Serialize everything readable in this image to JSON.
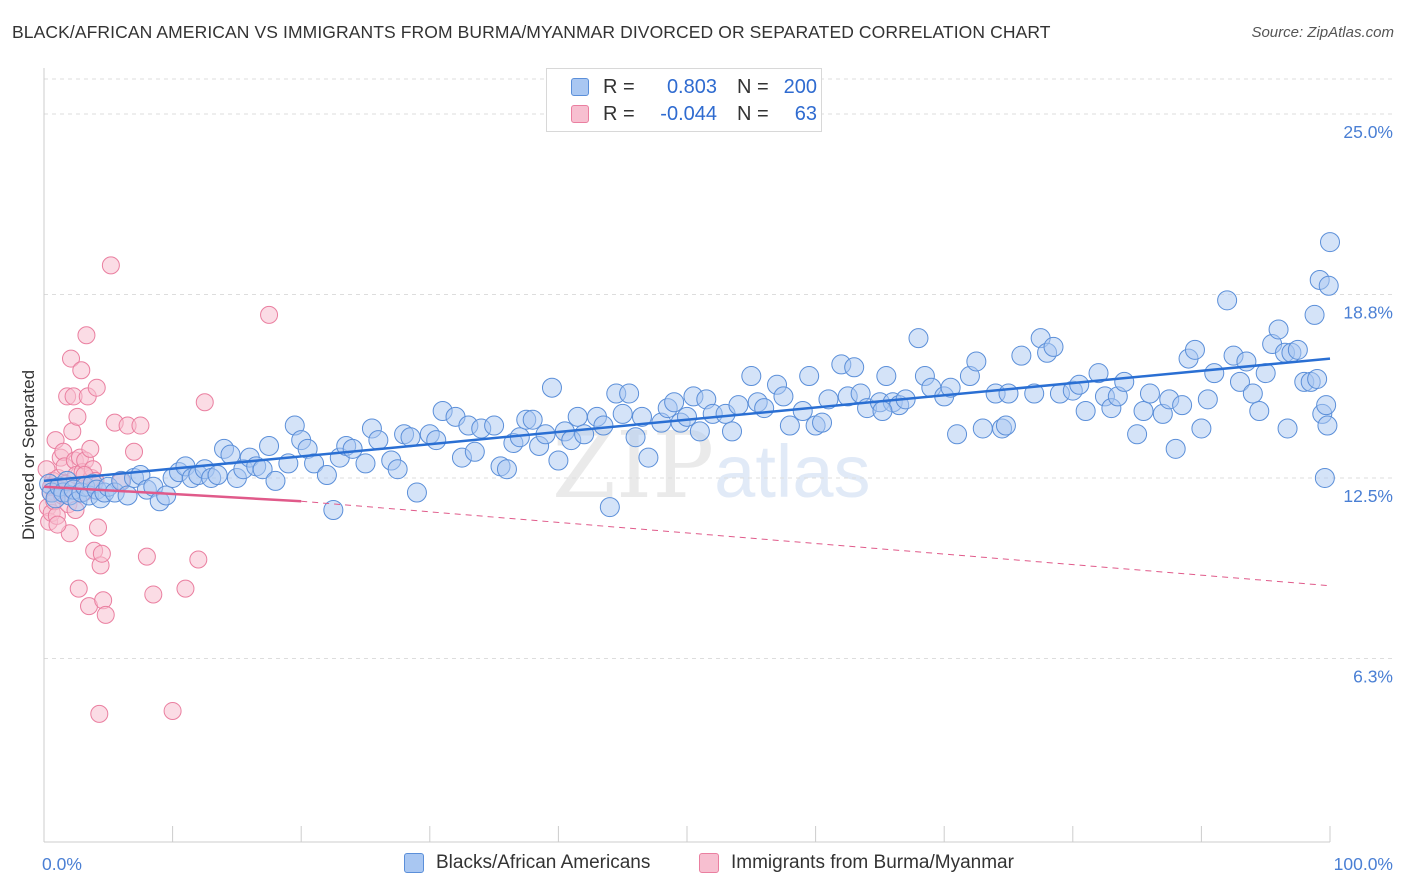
{
  "title": "BLACK/AFRICAN AMERICAN VS IMMIGRANTS FROM BURMA/MYANMAR DIVORCED OR SEPARATED CORRELATION CHART",
  "source": "Source: ZipAtlas.com",
  "watermark": {
    "zip": "ZIP",
    "atlas": "atlas"
  },
  "colors": {
    "blue_fill": "#a9c7f2",
    "blue_stroke": "#5b8fd9",
    "blue_line": "#2a6fd3",
    "pink_fill": "#f7bfd0",
    "pink_stroke": "#ea7fa0",
    "pink_line": "#e05a8a",
    "grid": "#dddddd",
    "axis_text": "#4a7fd4"
  },
  "legend": {
    "rows": [
      {
        "r_label": "R =",
        "r_value": "0.803",
        "n_label": "N =",
        "n_value": "200"
      },
      {
        "r_label": "R =",
        "r_value": "-0.044",
        "n_label": "N =",
        "n_value": "63"
      }
    ]
  },
  "bottom_legend": [
    "Blacks/African Americans",
    "Immigrants from Burma/Myanmar"
  ],
  "chart_data": {
    "type": "scatter",
    "title": "BLACK/AFRICAN AMERICAN VS IMMIGRANTS FROM BURMA/MYANMAR DIVORCED OR SEPARATED CORRELATION CHART",
    "xlabel": "",
    "ylabel": "Divorced or Separated",
    "xlim": [
      0,
      100
    ],
    "ylim": [
      0,
      26.2
    ],
    "y_ticks": [
      6.3,
      12.5,
      18.8,
      25.0
    ],
    "y_tick_labels": [
      "6.3%",
      "12.5%",
      "18.8%",
      "25.0%"
    ],
    "x_tick_labels": [
      "0.0%",
      "100.0%"
    ],
    "grid": true,
    "legend_position": "top-center",
    "series": [
      {
        "name": "Blacks/African Americans",
        "trend": {
          "x": [
            0.0,
            100.0
          ],
          "y": [
            12.4,
            16.6
          ]
        },
        "points": [
          [
            0.4,
            12.3
          ],
          [
            0.6,
            12.0
          ],
          [
            0.9,
            11.8
          ],
          [
            1.2,
            12.2
          ],
          [
            1.5,
            12.0
          ],
          [
            1.8,
            12.4
          ],
          [
            2.0,
            11.9
          ],
          [
            2.3,
            12.1
          ],
          [
            2.6,
            11.7
          ],
          [
            2.9,
            12.0
          ],
          [
            3.2,
            12.2
          ],
          [
            3.5,
            11.9
          ],
          [
            3.8,
            12.3
          ],
          [
            4.1,
            12.1
          ],
          [
            4.4,
            11.8
          ],
          [
            4.7,
            12.0
          ],
          [
            5.0,
            12.2
          ],
          [
            5.5,
            12.0
          ],
          [
            6.0,
            12.4
          ],
          [
            6.5,
            11.9
          ],
          [
            7.0,
            12.5
          ],
          [
            7.5,
            12.6
          ],
          [
            8.0,
            12.1
          ],
          [
            8.5,
            12.2
          ],
          [
            9.0,
            11.7
          ],
          [
            9.5,
            11.9
          ],
          [
            10.0,
            12.5
          ],
          [
            10.5,
            12.7
          ],
          [
            11.0,
            12.9
          ],
          [
            11.5,
            12.5
          ],
          [
            12.0,
            12.6
          ],
          [
            12.5,
            12.8
          ],
          [
            13.0,
            12.5
          ],
          [
            13.5,
            12.6
          ],
          [
            14.0,
            13.5
          ],
          [
            14.5,
            13.3
          ],
          [
            15.0,
            12.5
          ],
          [
            15.5,
            12.8
          ],
          [
            16.0,
            13.2
          ],
          [
            16.5,
            12.9
          ],
          [
            17.0,
            12.8
          ],
          [
            17.5,
            13.6
          ],
          [
            18.0,
            12.4
          ],
          [
            19.0,
            13.0
          ],
          [
            19.5,
            14.3
          ],
          [
            20.0,
            13.8
          ],
          [
            20.5,
            13.5
          ],
          [
            21.0,
            13.0
          ],
          [
            22.0,
            12.6
          ],
          [
            22.5,
            11.4
          ],
          [
            23.0,
            13.2
          ],
          [
            23.5,
            13.6
          ],
          [
            24.0,
            13.5
          ],
          [
            25.0,
            13.0
          ],
          [
            25.5,
            14.2
          ],
          [
            26.0,
            13.8
          ],
          [
            27.0,
            13.1
          ],
          [
            27.5,
            12.8
          ],
          [
            28.0,
            14.0
          ],
          [
            28.5,
            13.9
          ],
          [
            29.0,
            12.0
          ],
          [
            30.0,
            14.0
          ],
          [
            30.5,
            13.8
          ],
          [
            31.0,
            14.8
          ],
          [
            32.0,
            14.6
          ],
          [
            32.5,
            13.2
          ],
          [
            33.0,
            14.3
          ],
          [
            33.5,
            13.4
          ],
          [
            34.0,
            14.2
          ],
          [
            35.0,
            14.3
          ],
          [
            35.5,
            12.9
          ],
          [
            36.0,
            12.8
          ],
          [
            36.5,
            13.7
          ],
          [
            37.0,
            13.9
          ],
          [
            37.5,
            14.5
          ],
          [
            38.0,
            14.5
          ],
          [
            38.5,
            13.6
          ],
          [
            39.0,
            14.0
          ],
          [
            39.5,
            15.6
          ],
          [
            40.0,
            13.1
          ],
          [
            40.5,
            14.1
          ],
          [
            41.0,
            13.8
          ],
          [
            41.5,
            14.6
          ],
          [
            42.0,
            14.0
          ],
          [
            43.0,
            14.6
          ],
          [
            43.5,
            14.3
          ],
          [
            44.0,
            11.5
          ],
          [
            44.5,
            15.4
          ],
          [
            45.0,
            14.7
          ],
          [
            45.5,
            15.4
          ],
          [
            46.0,
            13.9
          ],
          [
            46.5,
            14.6
          ],
          [
            47.0,
            13.2
          ],
          [
            48.0,
            14.4
          ],
          [
            48.5,
            14.9
          ],
          [
            49.0,
            15.1
          ],
          [
            49.5,
            14.4
          ],
          [
            50.0,
            14.6
          ],
          [
            50.5,
            15.3
          ],
          [
            51.0,
            14.1
          ],
          [
            51.5,
            15.2
          ],
          [
            52.0,
            14.7
          ],
          [
            53.0,
            14.7
          ],
          [
            53.5,
            14.1
          ],
          [
            54.0,
            15.0
          ],
          [
            55.0,
            16.0
          ],
          [
            55.5,
            15.1
          ],
          [
            56.0,
            14.9
          ],
          [
            57.0,
            15.7
          ],
          [
            57.5,
            15.3
          ],
          [
            58.0,
            14.3
          ],
          [
            59.0,
            14.8
          ],
          [
            59.5,
            16.0
          ],
          [
            60.0,
            14.3
          ],
          [
            60.5,
            14.4
          ],
          [
            61.0,
            15.2
          ],
          [
            62.0,
            16.4
          ],
          [
            62.5,
            15.3
          ],
          [
            63.0,
            16.3
          ],
          [
            63.5,
            15.4
          ],
          [
            64.0,
            14.9
          ],
          [
            65.0,
            15.1
          ],
          [
            65.5,
            16.0
          ],
          [
            66.0,
            15.1
          ],
          [
            66.5,
            15.0
          ],
          [
            67.0,
            15.2
          ],
          [
            68.0,
            17.3
          ],
          [
            68.5,
            16.0
          ],
          [
            69.0,
            15.6
          ],
          [
            70.0,
            15.3
          ],
          [
            70.5,
            15.6
          ],
          [
            71.0,
            14.0
          ],
          [
            72.0,
            16.0
          ],
          [
            72.5,
            16.5
          ],
          [
            73.0,
            14.2
          ],
          [
            74.0,
            15.4
          ],
          [
            74.5,
            14.2
          ],
          [
            75.0,
            15.4
          ],
          [
            76.0,
            16.7
          ],
          [
            77.0,
            15.4
          ],
          [
            77.5,
            17.3
          ],
          [
            78.0,
            16.8
          ],
          [
            78.5,
            17.0
          ],
          [
            79.0,
            15.4
          ],
          [
            80.0,
            15.5
          ],
          [
            80.5,
            15.7
          ],
          [
            81.0,
            14.8
          ],
          [
            82.0,
            16.1
          ],
          [
            82.5,
            15.3
          ],
          [
            83.0,
            14.9
          ],
          [
            83.5,
            15.3
          ],
          [
            84.0,
            15.8
          ],
          [
            85.0,
            14.0
          ],
          [
            85.5,
            14.8
          ],
          [
            86.0,
            15.4
          ],
          [
            87.0,
            14.7
          ],
          [
            87.5,
            15.2
          ],
          [
            88.0,
            13.5
          ],
          [
            89.0,
            16.6
          ],
          [
            89.5,
            16.9
          ],
          [
            90.0,
            14.2
          ],
          [
            90.5,
            15.2
          ],
          [
            91.0,
            16.1
          ],
          [
            92.0,
            18.6
          ],
          [
            92.5,
            16.7
          ],
          [
            93.0,
            15.8
          ],
          [
            93.5,
            16.5
          ],
          [
            94.0,
            15.4
          ],
          [
            94.5,
            14.8
          ],
          [
            95.0,
            16.1
          ],
          [
            95.5,
            17.1
          ],
          [
            96.0,
            17.6
          ],
          [
            96.5,
            16.8
          ],
          [
            97.0,
            16.8
          ],
          [
            97.5,
            16.9
          ],
          [
            98.0,
            15.8
          ],
          [
            98.5,
            15.8
          ],
          [
            98.8,
            18.1
          ],
          [
            99.0,
            15.9
          ],
          [
            99.2,
            19.3
          ],
          [
            99.4,
            14.7
          ],
          [
            99.6,
            12.5
          ],
          [
            99.7,
            15.0
          ],
          [
            99.8,
            14.3
          ],
          [
            99.9,
            19.1
          ],
          [
            100.0,
            20.6
          ],
          [
            96.7,
            14.2
          ],
          [
            88.5,
            15.0
          ],
          [
            74.8,
            14.3
          ],
          [
            65.2,
            14.8
          ]
        ]
      },
      {
        "name": "Immigrants from Burma/Myanmar",
        "trend": {
          "x": [
            0.0,
            20.0
          ],
          "y": [
            12.2,
            11.7
          ]
        },
        "trend_extended": {
          "x": [
            20.0,
            100.0
          ],
          "y": [
            11.7,
            8.8
          ]
        },
        "points": [
          [
            0.2,
            12.8
          ],
          [
            0.3,
            11.5
          ],
          [
            0.4,
            11.0
          ],
          [
            0.5,
            12.0
          ],
          [
            0.6,
            11.3
          ],
          [
            0.7,
            12.4
          ],
          [
            0.8,
            11.7
          ],
          [
            0.9,
            13.8
          ],
          [
            1.0,
            11.2
          ],
          [
            1.1,
            12.5
          ],
          [
            1.2,
            12.1
          ],
          [
            1.3,
            13.2
          ],
          [
            1.4,
            11.9
          ],
          [
            1.5,
            13.4
          ],
          [
            1.6,
            12.9
          ],
          [
            1.7,
            12.3
          ],
          [
            1.8,
            15.3
          ],
          [
            1.9,
            11.6
          ],
          [
            2.0,
            10.6
          ],
          [
            2.1,
            16.6
          ],
          [
            2.2,
            14.1
          ],
          [
            2.3,
            15.3
          ],
          [
            2.4,
            13.1
          ],
          [
            2.5,
            12.6
          ],
          [
            2.6,
            14.6
          ],
          [
            2.7,
            8.7
          ],
          [
            2.8,
            13.2
          ],
          [
            2.9,
            16.2
          ],
          [
            3.0,
            12.7
          ],
          [
            3.1,
            12.0
          ],
          [
            3.2,
            13.1
          ],
          [
            3.3,
            17.4
          ],
          [
            3.4,
            15.3
          ],
          [
            3.5,
            8.1
          ],
          [
            3.6,
            13.5
          ],
          [
            3.7,
            12.5
          ],
          [
            3.8,
            12.8
          ],
          [
            3.9,
            10.0
          ],
          [
            4.0,
            12.4
          ],
          [
            4.1,
            15.6
          ],
          [
            4.2,
            10.8
          ],
          [
            4.3,
            4.4
          ],
          [
            4.4,
            9.5
          ],
          [
            4.5,
            9.9
          ],
          [
            4.6,
            8.3
          ],
          [
            4.8,
            7.8
          ],
          [
            5.2,
            19.8
          ],
          [
            5.5,
            14.4
          ],
          [
            6.0,
            12.4
          ],
          [
            6.5,
            14.3
          ],
          [
            7.0,
            13.4
          ],
          [
            7.5,
            14.3
          ],
          [
            8.0,
            9.8
          ],
          [
            8.5,
            8.5
          ],
          [
            10.0,
            4.5
          ],
          [
            11.0,
            8.7
          ],
          [
            12.0,
            9.7
          ],
          [
            12.5,
            15.1
          ],
          [
            17.5,
            18.1
          ],
          [
            2.45,
            11.4
          ],
          [
            1.05,
            10.9
          ],
          [
            3.15,
            12.6
          ],
          [
            0.55,
            12.2
          ]
        ]
      }
    ]
  }
}
